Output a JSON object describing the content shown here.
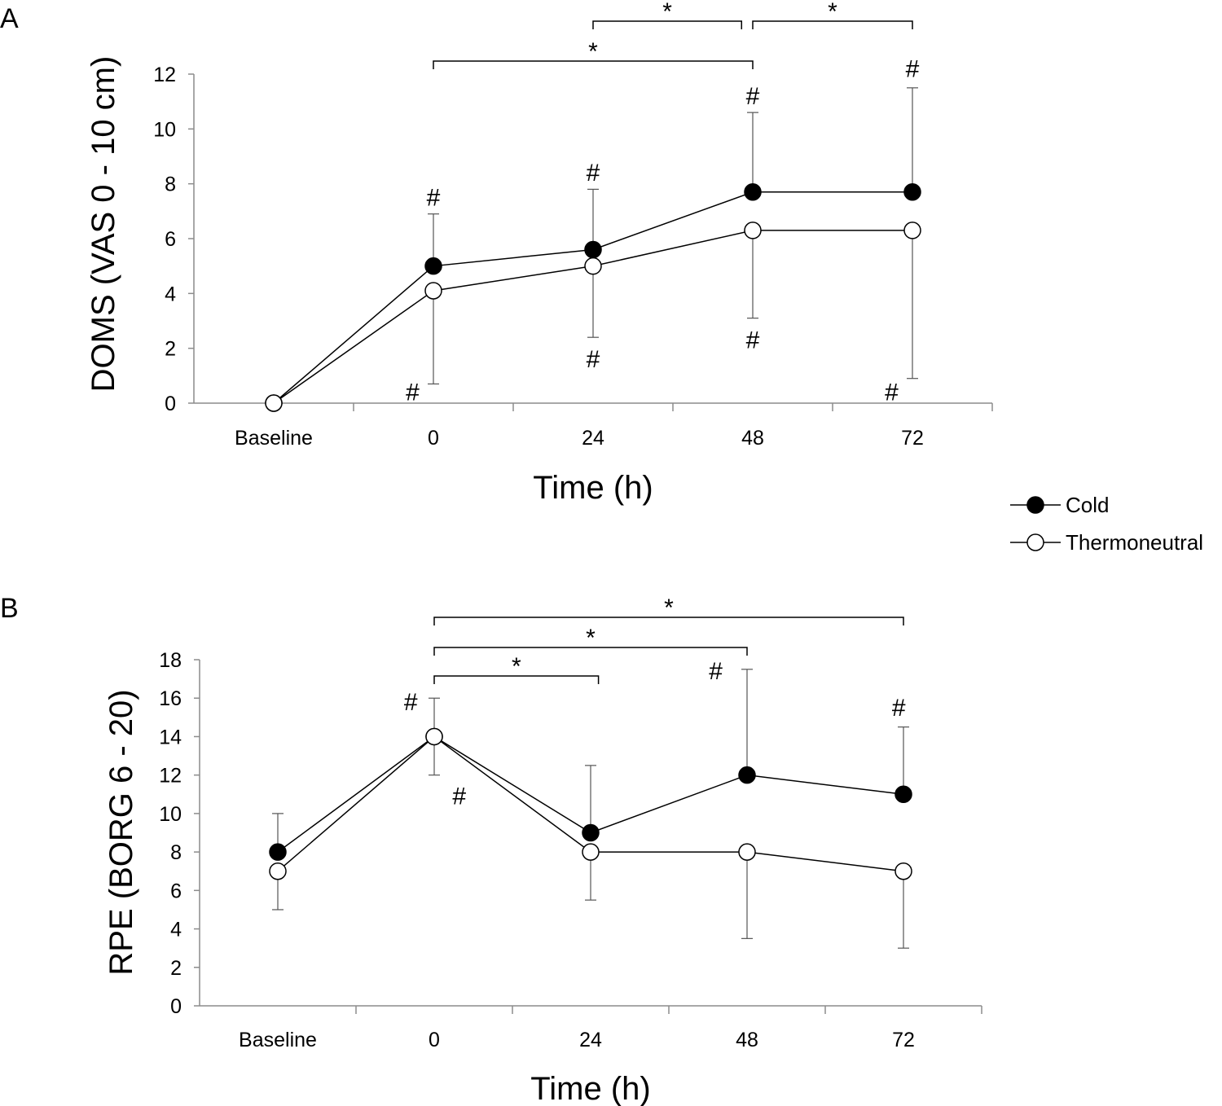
{
  "legend": {
    "items": [
      {
        "label": "Cold",
        "fill": "#000000"
      },
      {
        "label": "Thermoneutral",
        "fill": "#ffffff"
      }
    ]
  },
  "chart_data": [
    {
      "panel": "A",
      "type": "line",
      "title": "",
      "xlabel": "Time (h)",
      "ylabel": "DOMS (VAS 0 - 10 cm)",
      "categories": [
        "Baseline",
        "0",
        "24",
        "48",
        "72"
      ],
      "ylim": [
        0,
        12
      ],
      "yticks": [
        0,
        2,
        4,
        6,
        8,
        10,
        12
      ],
      "grid": false,
      "legend_position": "right",
      "series": [
        {
          "name": "Cold",
          "marker_fill": "#000000",
          "values": [
            0,
            5.0,
            5.6,
            7.7,
            7.7
          ],
          "error_upper": [
            null,
            6.9,
            7.8,
            10.6,
            11.5
          ],
          "error_lower": [
            null,
            null,
            null,
            null,
            null
          ]
        },
        {
          "name": "Thermoneutral",
          "marker_fill": "#ffffff",
          "values": [
            0,
            4.1,
            5.0,
            6.3,
            6.3
          ],
          "error_upper": [
            null,
            null,
            null,
            null,
            null
          ],
          "error_lower": [
            null,
            0.7,
            2.4,
            3.1,
            0.9
          ]
        }
      ],
      "annotations": [
        {
          "text": "#",
          "cat": 1,
          "y": 7.5
        },
        {
          "text": "#",
          "cat": 2,
          "y": 8.4
        },
        {
          "text": "#",
          "cat": 3,
          "y": 11.2
        },
        {
          "text": "#",
          "cat": 4,
          "y": 12.2
        },
        {
          "text": "#",
          "cat": 0.87,
          "y": 0.4
        },
        {
          "text": "#",
          "cat": 2,
          "y": 1.6
        },
        {
          "text": "#",
          "cat": 3,
          "y": 2.3
        },
        {
          "text": "#",
          "cat": 3.87,
          "y": 0.4
        }
      ],
      "brackets": [
        {
          "from": 1,
          "to": 3,
          "text": "*",
          "level": 0
        },
        {
          "from": 2,
          "to": 2.93,
          "text": "*",
          "level": 1
        },
        {
          "from": 3,
          "to": 4,
          "text": "*",
          "level": 1
        }
      ]
    },
    {
      "panel": "B",
      "type": "line",
      "title": "",
      "xlabel": "Time (h)",
      "ylabel": "RPE (BORG 6 - 20)",
      "categories": [
        "Baseline",
        "0",
        "24",
        "48",
        "72"
      ],
      "ylim": [
        0,
        18
      ],
      "yticks": [
        0,
        2,
        4,
        6,
        8,
        10,
        12,
        14,
        16,
        18
      ],
      "grid": false,
      "series": [
        {
          "name": "Cold",
          "marker_fill": "#000000",
          "values": [
            8,
            14,
            9,
            12,
            11
          ],
          "error_upper": [
            10,
            16,
            12.5,
            17.5,
            14.5
          ],
          "error_lower": [
            null,
            null,
            null,
            null,
            null
          ]
        },
        {
          "name": "Thermoneutral",
          "marker_fill": "#ffffff",
          "values": [
            7,
            14,
            8,
            8,
            7
          ],
          "error_upper": [
            null,
            null,
            null,
            null,
            null
          ],
          "error_lower": [
            5,
            12,
            5.5,
            3.5,
            3
          ]
        }
      ],
      "annotations": [
        {
          "text": "#",
          "cat": 0.85,
          "y": 15.8
        },
        {
          "text": "#",
          "cat": 1.16,
          "y": 10.9
        },
        {
          "text": "#",
          "cat": 2.8,
          "y": 17.4
        },
        {
          "text": "#",
          "cat": 3.97,
          "y": 15.5
        }
      ],
      "brackets": [
        {
          "from": 1,
          "to": 2.05,
          "text": "*",
          "level": 0
        },
        {
          "from": 1,
          "to": 3,
          "text": "*",
          "level": 1
        },
        {
          "from": 1,
          "to": 4,
          "text": "*",
          "level": 2
        }
      ]
    }
  ]
}
